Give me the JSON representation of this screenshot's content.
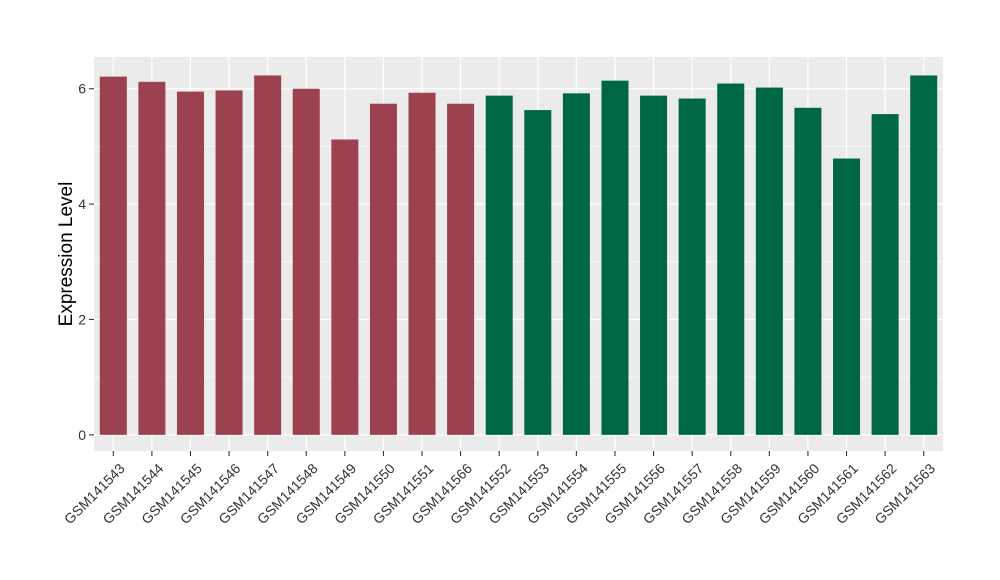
{
  "chart_data": {
    "type": "bar",
    "ylabel": "Expression Level",
    "xlabel": "",
    "ylim": [
      -0.28,
      6.55
    ],
    "yticks": [
      0,
      2,
      4,
      6
    ],
    "grid": true,
    "legend": "none",
    "colors": {
      "group_a": "#9B4150",
      "group_b": "#006746",
      "panel_bg": "#EBEBEB",
      "grid": "#FFFFFF"
    },
    "categories": [
      "GSM141543",
      "GSM141544",
      "GSM141545",
      "GSM141546",
      "GSM141547",
      "GSM141548",
      "GSM141549",
      "GSM141550",
      "GSM141551",
      "GSM141566",
      "GSM141552",
      "GSM141553",
      "GSM141554",
      "GSM141555",
      "GSM141556",
      "GSM141557",
      "GSM141558",
      "GSM141559",
      "GSM141560",
      "GSM141561",
      "GSM141562",
      "GSM141563"
    ],
    "values": [
      6.21,
      6.12,
      5.95,
      5.97,
      6.23,
      6.0,
      5.12,
      5.74,
      5.93,
      5.74,
      5.88,
      5.63,
      5.92,
      6.14,
      5.88,
      5.83,
      6.09,
      6.02,
      5.67,
      4.79,
      5.56,
      6.23
    ],
    "groups": [
      "a",
      "a",
      "a",
      "a",
      "a",
      "a",
      "a",
      "a",
      "a",
      "a",
      "b",
      "b",
      "b",
      "b",
      "b",
      "b",
      "b",
      "b",
      "b",
      "b",
      "b",
      "b"
    ]
  }
}
